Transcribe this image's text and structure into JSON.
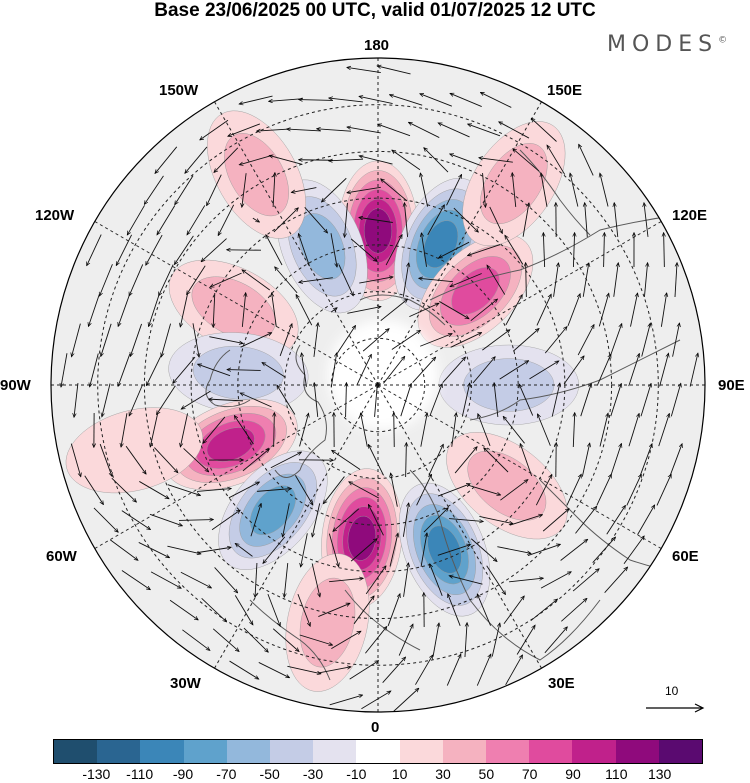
{
  "header": {
    "title": "Base 23/06/2025 00 UTC, valid 01/07/2025 12 UTC",
    "brand": "MODES",
    "brand_mark": "©"
  },
  "map": {
    "projection": "north-polar-stereographic",
    "longitude_labels": {
      "top": "180",
      "bottom": "0",
      "left": "90W",
      "right": "90E",
      "upper_left_1": "150W",
      "upper_left_2": "120W",
      "upper_right_1": "150E",
      "upper_right_2": "120E",
      "lower_left_1": "60W",
      "lower_left_2": "30W",
      "lower_right_1": "60E",
      "lower_right_2": "30E"
    },
    "reference_vector_label": "10",
    "anomaly_centers": [
      {
        "lon": 180,
        "lat": 57,
        "value": 110
      },
      {
        "lon": 156,
        "lat": 57,
        "value": -90
      },
      {
        "lon": 134,
        "lat": 61,
        "value": 70
      },
      {
        "lon": -158,
        "lat": 58,
        "value": -50
      },
      {
        "lon": -118,
        "lat": 55,
        "value": 40
      },
      {
        "lon": -95,
        "lat": 60,
        "value": -30
      },
      {
        "lon": -68,
        "lat": 56,
        "value": 90
      },
      {
        "lon": -40,
        "lat": 55,
        "value": -80
      },
      {
        "lon": -6,
        "lat": 57,
        "value": 110
      },
      {
        "lon": 22,
        "lat": 52,
        "value": -90
      },
      {
        "lon": 52,
        "lat": 55,
        "value": 40
      },
      {
        "lon": 90,
        "lat": 62,
        "value": -30
      },
      {
        "lon": -150,
        "lat": 38,
        "value": 30
      },
      {
        "lon": 146,
        "lat": 38,
        "value": 30
      },
      {
        "lon": -75,
        "lat": 36,
        "value": 20
      },
      {
        "lon": -12,
        "lat": 38,
        "value": 40
      }
    ]
  },
  "colorbar": {
    "colors": [
      "#1f4e6e",
      "#2a6591",
      "#3b86b8",
      "#5fa2cc",
      "#93b8dc",
      "#c4cce6",
      "#e4e2ef",
      "#ffffff",
      "#fbd9db",
      "#f5b2c0",
      "#ef7fb0",
      "#e04b9e",
      "#c0218b",
      "#8f0a7c",
      "#5a0a70"
    ],
    "tick_labels": [
      "-130",
      "-110",
      "-90",
      "-70",
      "-50",
      "-30",
      "-10",
      "10",
      "30",
      "50",
      "70",
      "90",
      "110",
      "130"
    ]
  }
}
